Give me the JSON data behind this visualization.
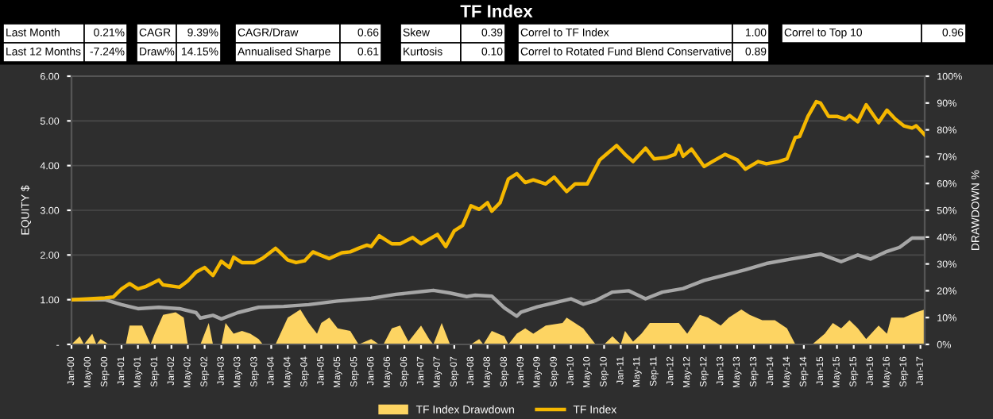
{
  "chart_data": {
    "type": "line",
    "title": "TF Index",
    "annotations": [
      "Last Month",
      "0.21%",
      "Last 12 Months",
      "-7.24%",
      "CAGR",
      "9.39%",
      "Draw%",
      "14.15%",
      "CAGR/Draw",
      "0.66",
      "Annualised Sharpe",
      "0.61",
      "Skew",
      "0.39",
      "Kurtosis",
      "0.10",
      "Correl to TF Index",
      "1.00",
      "Correl to Rotated Fund Blend Conservative",
      "0.89",
      "Correl to Top 10",
      "0.96"
    ],
    "ylabel": "EQUITY $",
    "y2label": "DRAWDOWN %",
    "series": [
      {
        "name": "TF Index Drawdown",
        "type": "area",
        "axis": "y2",
        "color": "#fdd462",
        "x": [
          "2000-01",
          "2000-03",
          "2000-04",
          "2000-06",
          "2000-07",
          "2000-08",
          "2000-10",
          "2001-02",
          "2001-03",
          "2001-06",
          "2001-08",
          "2001-09",
          "2001-11",
          "2002-02",
          "2002-04",
          "2002-05",
          "2002-08",
          "2002-10",
          "2002-11",
          "2003-01",
          "2003-02",
          "2003-04",
          "2003-06",
          "2003-08",
          "2003-10",
          "2003-11",
          "2004-02",
          "2004-05",
          "2004-08",
          "2004-10",
          "2004-12",
          "2005-01",
          "2005-03",
          "2005-05",
          "2005-08",
          "2005-10",
          "2006-01",
          "2006-03",
          "2006-04",
          "2006-06",
          "2006-08",
          "2006-10",
          "2007-01",
          "2007-03",
          "2007-04",
          "2007-06",
          "2007-08",
          "2008-01",
          "2008-03",
          "2008-04",
          "2008-06",
          "2008-09",
          "2008-10",
          "2008-12",
          "2009-02",
          "2009-04",
          "2009-07",
          "2009-11",
          "2009-12",
          "2010-04",
          "2010-06",
          "2010-07",
          "2010-09",
          "2010-11",
          "2011-01",
          "2011-02",
          "2011-04",
          "2011-06",
          "2011-08",
          "2011-11",
          "2012-03",
          "2012-05",
          "2012-08",
          "2012-10",
          "2013-01",
          "2013-03",
          "2013-06",
          "2013-08",
          "2013-11",
          "2014-02",
          "2014-05",
          "2014-07",
          "2014-11",
          "2015-02",
          "2015-04",
          "2015-06",
          "2015-08",
          "2015-10",
          "2015-12",
          "2016-03",
          "2016-05",
          "2016-06",
          "2016-09",
          "2016-12",
          "2017-02"
        ],
        "values": [
          0,
          3,
          0,
          4,
          0,
          2,
          0,
          0,
          7,
          7,
          0,
          4,
          11,
          12,
          10,
          0,
          0,
          8,
          0,
          0,
          8,
          4,
          5,
          4,
          2,
          0,
          0,
          10,
          13,
          8,
          4,
          8,
          10,
          6,
          5,
          0,
          2,
          0,
          0,
          6,
          7,
          1,
          7,
          2,
          0,
          8,
          0,
          0,
          2,
          0,
          5,
          3,
          0,
          4,
          6,
          4,
          7,
          8,
          10,
          6,
          2,
          0,
          0,
          3,
          0,
          5,
          1,
          4,
          8,
          8,
          8,
          4,
          11,
          10,
          7,
          10,
          13,
          11,
          9,
          9,
          6,
          0,
          0,
          4,
          8,
          6,
          9,
          6,
          2,
          7,
          4,
          10,
          10,
          12,
          13
        ]
      },
      {
        "color": "#a6a6a6",
        "x": [
          "2000-01",
          "2000-09",
          "2001-01",
          "2001-05",
          "2001-10",
          "2002-03",
          "2002-07",
          "2002-08",
          "2002-11",
          "2003-01",
          "2003-05",
          "2003-10",
          "2004-04",
          "2004-10",
          "2005-05",
          "2006-01",
          "2006-07",
          "2007-01",
          "2007-04",
          "2007-08",
          "2007-12",
          "2008-02",
          "2008-06",
          "2008-09",
          "2008-12",
          "2009-01",
          "2009-05",
          "2009-09",
          "2010-01",
          "2010-04",
          "2010-07",
          "2010-11",
          "2011-03",
          "2011-07",
          "2011-11",
          "2012-04",
          "2012-09",
          "2013-02",
          "2013-07",
          "2013-12",
          "2014-06",
          "2015-01",
          "2015-06",
          "2015-10",
          "2016-01",
          "2016-05",
          "2016-08",
          "2016-11",
          "2017-02"
        ],
        "values": [
          1.0,
          1.0,
          0.89,
          0.8,
          0.83,
          0.8,
          0.71,
          0.59,
          0.65,
          0.57,
          0.71,
          0.83,
          0.85,
          0.89,
          0.97,
          1.03,
          1.12,
          1.18,
          1.21,
          1.15,
          1.07,
          1.1,
          1.08,
          0.82,
          0.63,
          0.72,
          0.84,
          0.93,
          1.02,
          0.9,
          0.98,
          1.17,
          1.2,
          1.02,
          1.17,
          1.25,
          1.43,
          1.55,
          1.67,
          1.81,
          1.91,
          2.02,
          1.85,
          2.0,
          1.91,
          2.08,
          2.17,
          2.38,
          2.38
        ]
      },
      {
        "name": "TF Index",
        "color": "#f5b800",
        "x": [
          "2000-01",
          "2000-09",
          "2000-11",
          "2001-01",
          "2001-03",
          "2001-05",
          "2001-07",
          "2001-10",
          "2001-11",
          "2002-03",
          "2002-05",
          "2002-07",
          "2002-09",
          "2002-11",
          "2003-01",
          "2003-03",
          "2003-04",
          "2003-06",
          "2003-09",
          "2003-11",
          "2004-02",
          "2004-03",
          "2004-05",
          "2004-07",
          "2004-09",
          "2004-11",
          "2005-01",
          "2005-03",
          "2005-06",
          "2005-08",
          "2005-10",
          "2005-12",
          "2006-01",
          "2006-03",
          "2006-06",
          "2006-08",
          "2006-11",
          "2007-01",
          "2007-05",
          "2007-07",
          "2007-09",
          "2007-11",
          "2008-01",
          "2008-03",
          "2008-05",
          "2008-06",
          "2008-08",
          "2008-10",
          "2008-12",
          "2009-02",
          "2009-04",
          "2009-07",
          "2009-09",
          "2009-12",
          "2010-02",
          "2010-05",
          "2010-08",
          "2010-11",
          "2010-12",
          "2011-02",
          "2011-04",
          "2011-07",
          "2011-09",
          "2011-12",
          "2012-02",
          "2012-03",
          "2012-04",
          "2012-06",
          "2012-09",
          "2012-11",
          "2013-02",
          "2013-05",
          "2013-07",
          "2013-10",
          "2013-12",
          "2014-03",
          "2014-05",
          "2014-07",
          "2014-08",
          "2014-10",
          "2014-12",
          "2015-01",
          "2015-03",
          "2015-05",
          "2015-07",
          "2015-08",
          "2015-10",
          "2015-12",
          "2016-03",
          "2016-05",
          "2016-07",
          "2016-09",
          "2016-11",
          "2016-12",
          "2017-02"
        ],
        "values": [
          1.0,
          1.04,
          1.06,
          1.24,
          1.36,
          1.24,
          1.3,
          1.44,
          1.33,
          1.28,
          1.42,
          1.62,
          1.72,
          1.54,
          1.86,
          1.72,
          1.95,
          1.83,
          1.83,
          1.93,
          2.15,
          2.07,
          1.89,
          1.83,
          1.87,
          2.07,
          1.99,
          1.92,
          2.05,
          2.07,
          2.15,
          2.22,
          2.19,
          2.43,
          2.25,
          2.25,
          2.39,
          2.25,
          2.46,
          2.19,
          2.54,
          2.66,
          3.1,
          3.02,
          3.17,
          2.98,
          3.17,
          3.7,
          3.82,
          3.62,
          3.68,
          3.59,
          3.74,
          3.42,
          3.59,
          3.59,
          4.13,
          4.37,
          4.45,
          4.25,
          4.09,
          4.39,
          4.15,
          4.18,
          4.25,
          4.45,
          4.21,
          4.37,
          3.98,
          4.09,
          4.25,
          4.13,
          3.92,
          4.09,
          4.04,
          4.09,
          4.15,
          4.63,
          4.65,
          5.1,
          5.43,
          5.4,
          5.1,
          5.1,
          5.04,
          5.12,
          4.98,
          5.36,
          4.96,
          5.24,
          5.04,
          4.89,
          4.84,
          4.89,
          4.69
        ]
      }
    ],
    "xlim": [
      "2000-01",
      "2017-02"
    ],
    "xticks": [
      {
        "value": "2000-01",
        "label": "Jan-00"
      },
      {
        "value": "2000-05",
        "label": "May-00"
      },
      {
        "value": "2000-09",
        "label": "Sep-00"
      },
      {
        "value": "2001-01",
        "label": "Jan-01"
      },
      {
        "value": "2001-05",
        "label": "May-01"
      },
      {
        "value": "2001-09",
        "label": "Sep-01"
      },
      {
        "value": "2002-01",
        "label": "Jan-02"
      },
      {
        "value": "2002-05",
        "label": "May-02"
      },
      {
        "value": "2002-09",
        "label": "Sep-02"
      },
      {
        "value": "2003-01",
        "label": "Jan-03"
      },
      {
        "value": "2003-05",
        "label": "May-03"
      },
      {
        "value": "2003-09",
        "label": "Sep-03"
      },
      {
        "value": "2004-01",
        "label": "Jan-04"
      },
      {
        "value": "2004-05",
        "label": "May-04"
      },
      {
        "value": "2004-09",
        "label": "Sep-04"
      },
      {
        "value": "2005-01",
        "label": "Jan-05"
      },
      {
        "value": "2005-05",
        "label": "May-05"
      },
      {
        "value": "2005-09",
        "label": "Sep-05"
      },
      {
        "value": "2006-01",
        "label": "Jan-06"
      },
      {
        "value": "2006-05",
        "label": "May-06"
      },
      {
        "value": "2006-09",
        "label": "Sep-06"
      },
      {
        "value": "2007-01",
        "label": "Jan-07"
      },
      {
        "value": "2007-05",
        "label": "May-07"
      },
      {
        "value": "2007-09",
        "label": "Sep-07"
      },
      {
        "value": "2008-01",
        "label": "Jan-08"
      },
      {
        "value": "2008-05",
        "label": "May-08"
      },
      {
        "value": "2008-09",
        "label": "Sep-08"
      },
      {
        "value": "2009-01",
        "label": "Jan-09"
      },
      {
        "value": "2009-05",
        "label": "May-09"
      },
      {
        "value": "2009-09",
        "label": "Sep-09"
      },
      {
        "value": "2010-01",
        "label": "Jan-10"
      },
      {
        "value": "2010-05",
        "label": "May-10"
      },
      {
        "value": "2010-09",
        "label": "Sep-10"
      },
      {
        "value": "2011-01",
        "label": "Jan-11"
      },
      {
        "value": "2011-05",
        "label": "May-11"
      },
      {
        "value": "2011-09",
        "label": "Sep-11"
      },
      {
        "value": "2012-01",
        "label": "Jan-12"
      },
      {
        "value": "2012-05",
        "label": "May-12"
      },
      {
        "value": "2012-09",
        "label": "Sep-12"
      },
      {
        "value": "2013-01",
        "label": "Jan-13"
      },
      {
        "value": "2013-05",
        "label": "May-13"
      },
      {
        "value": "2013-09",
        "label": "Sep-13"
      },
      {
        "value": "2014-01",
        "label": "Jan-14"
      },
      {
        "value": "2014-05",
        "label": "May-14"
      },
      {
        "value": "2014-09",
        "label": "Sep-14"
      },
      {
        "value": "2015-01",
        "label": "Jan-15"
      },
      {
        "value": "2015-05",
        "label": "May-15"
      },
      {
        "value": "2015-09",
        "label": "Sep-15"
      },
      {
        "value": "2016-01",
        "label": "Jan-16"
      },
      {
        "value": "2016-05",
        "label": "May-16"
      },
      {
        "value": "2016-09",
        "label": "Sep-16"
      },
      {
        "value": "2017-01",
        "label": "Jan-17"
      }
    ],
    "ylim": [
      0,
      6
    ],
    "yticks": [
      {
        "value": 0,
        "label": "-"
      },
      {
        "value": 1,
        "label": "1.00"
      },
      {
        "value": 2,
        "label": "2.00"
      },
      {
        "value": 3,
        "label": "3.00"
      },
      {
        "value": 4,
        "label": "4.00"
      },
      {
        "value": 5,
        "label": "5.00"
      },
      {
        "value": 6,
        "label": "6.00"
      }
    ],
    "y2lim": [
      0,
      100
    ],
    "y2ticks": [
      {
        "value": 0,
        "label": "0%"
      },
      {
        "value": 10,
        "label": "10%"
      },
      {
        "value": 20,
        "label": "20%"
      },
      {
        "value": 30,
        "label": "30%"
      },
      {
        "value": 40,
        "label": "40%"
      },
      {
        "value": 50,
        "label": "50%"
      },
      {
        "value": 60,
        "label": "60%"
      },
      {
        "value": 70,
        "label": "70%"
      },
      {
        "value": 80,
        "label": "80%"
      },
      {
        "value": 90,
        "label": "90%"
      },
      {
        "value": 100,
        "label": "100%"
      }
    ],
    "grid": "y",
    "legend": "bottom"
  }
}
